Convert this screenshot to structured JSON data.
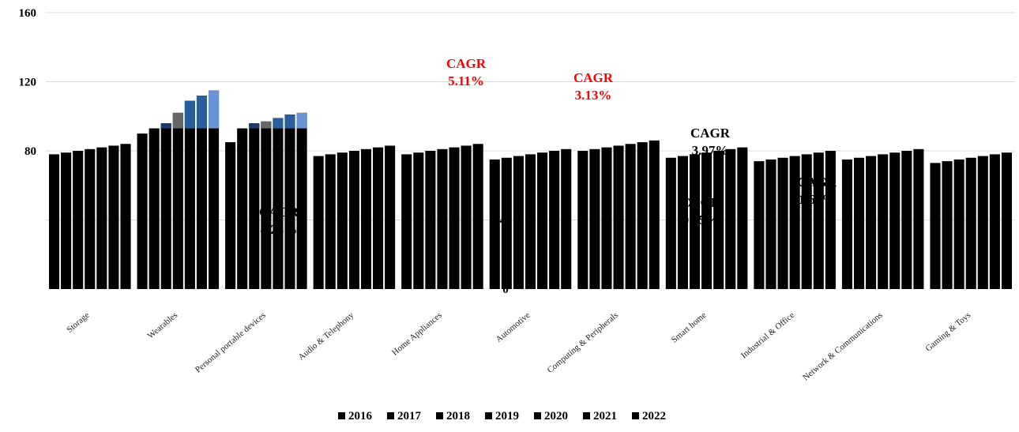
{
  "chart_data": {
    "type": "bar",
    "stacked": false,
    "ylim": [
      0,
      160
    ],
    "yticks": [
      0,
      40,
      80,
      120,
      160
    ],
    "grid": true,
    "legend_position": "bottom",
    "categories": [
      "Storage",
      "Wearables",
      "Personal portable devices",
      "Audio & Telephony",
      "Home Appliances",
      "Automotive",
      "Computing & Peripherals",
      "Smart home",
      "Industrial & Office",
      "Network & Communications",
      "Gaming & Toys"
    ],
    "cagr_labels": [
      {
        "label": "CAGR",
        "value": "4.28%",
        "color": "#000000"
      },
      {
        "label": "CAGR",
        "value": "5.11%",
        "color": "#ff0000"
      },
      {
        "label": "CAGR",
        "value": "3.13%",
        "color": "#ff0000"
      },
      {
        "label": "CAGR",
        "value": "3.97%",
        "color": "#000000"
      },
      {
        "label": "CAGR",
        "value": "0.95%",
        "color": "#000000"
      },
      {
        "label": "CAGR",
        "value": "1.66%",
        "color": "#000000"
      }
    ],
    "series": [
      {
        "name": "2016",
        "color": "#000000",
        "values": [
          78,
          90,
          85,
          77,
          78,
          75,
          80,
          76,
          74,
          75,
          73
        ]
      },
      {
        "name": "2017",
        "color": "#000000",
        "values": [
          79,
          93,
          93,
          78,
          79,
          76,
          81,
          77,
          75,
          76,
          74
        ]
      },
      {
        "name": "2018",
        "color": "#000000",
        "values": [
          80,
          96,
          96,
          79,
          80,
          77,
          82,
          78,
          76,
          77,
          75
        ]
      },
      {
        "name": "2019",
        "color": "#000000",
        "values": [
          81,
          102,
          97,
          80,
          81,
          78,
          83,
          79,
          77,
          78,
          76
        ]
      },
      {
        "name": "2020",
        "color": "#000000",
        "values": [
          82,
          109,
          99,
          81,
          82,
          79,
          84,
          80,
          78,
          79,
          77
        ]
      },
      {
        "name": "2021",
        "color": "#000000",
        "values": [
          83,
          112,
          101,
          82,
          83,
          80,
          85,
          81,
          79,
          80,
          78
        ]
      },
      {
        "name": "2022",
        "color": "#000000",
        "values": [
          84,
          115,
          102,
          83,
          84,
          81,
          86,
          82,
          80,
          81,
          79
        ]
      }
    ],
    "bar_top_colors": [
      "#000000",
      "#4aa3df",
      "#1f3b6e",
      "#666666",
      "#2a5f99",
      "#2a5f99",
      "#6a94d6"
    ]
  }
}
